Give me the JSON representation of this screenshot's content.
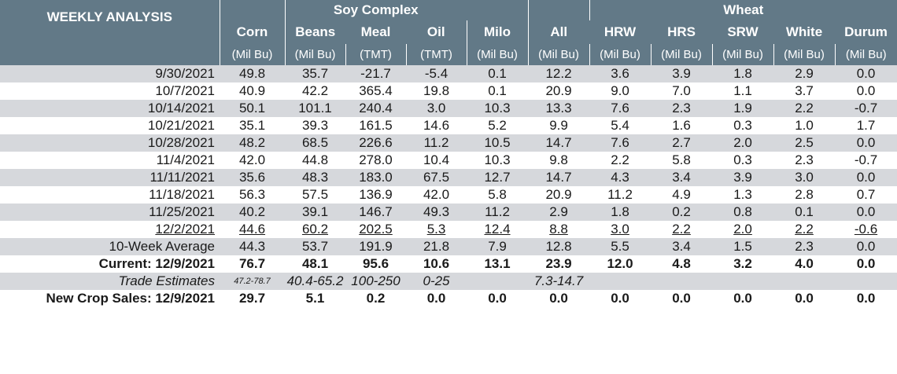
{
  "header": {
    "title": "WEEKLY ANALYSIS",
    "group_soy": "Soy Complex",
    "group_wheat": "Wheat",
    "columns": [
      {
        "name": "Corn",
        "unit": "(Mil Bu)"
      },
      {
        "name": "Beans",
        "unit": "(Mil Bu)"
      },
      {
        "name": "Meal",
        "unit": "(TMT)"
      },
      {
        "name": "Oil",
        "unit": "(TMT)"
      },
      {
        "name": "Milo",
        "unit": "(Mil Bu)"
      },
      {
        "name": "All",
        "unit": "(Mil Bu)"
      },
      {
        "name": "HRW",
        "unit": "(Mil Bu)"
      },
      {
        "name": "HRS",
        "unit": "(Mil Bu)"
      },
      {
        "name": "SRW",
        "unit": "(Mil Bu)"
      },
      {
        "name": "White",
        "unit": "(Mil Bu)"
      },
      {
        "name": "Durum",
        "unit": "(Mil Bu)"
      }
    ]
  },
  "rows": [
    {
      "label": "9/30/2021",
      "values": [
        "49.8",
        "35.7",
        "-21.7",
        "-5.4",
        "0.1",
        "12.2",
        "3.6",
        "3.9",
        "1.8",
        "2.9",
        "0.0"
      ]
    },
    {
      "label": "10/7/2021",
      "values": [
        "40.9",
        "42.2",
        "365.4",
        "19.8",
        "0.1",
        "20.9",
        "9.0",
        "7.0",
        "1.1",
        "3.7",
        "0.0"
      ]
    },
    {
      "label": "10/14/2021",
      "values": [
        "50.1",
        "101.1",
        "240.4",
        "3.0",
        "10.3",
        "13.3",
        "7.6",
        "2.3",
        "1.9",
        "2.2",
        "-0.7"
      ]
    },
    {
      "label": "10/21/2021",
      "values": [
        "35.1",
        "39.3",
        "161.5",
        "14.6",
        "5.2",
        "9.9",
        "5.4",
        "1.6",
        "0.3",
        "1.0",
        "1.7"
      ]
    },
    {
      "label": "10/28/2021",
      "values": [
        "48.2",
        "68.5",
        "226.6",
        "11.2",
        "10.5",
        "14.7",
        "7.6",
        "2.7",
        "2.0",
        "2.5",
        "0.0"
      ]
    },
    {
      "label": "11/4/2021",
      "values": [
        "42.0",
        "44.8",
        "278.0",
        "10.4",
        "10.3",
        "9.8",
        "2.2",
        "5.8",
        "0.3",
        "2.3",
        "-0.7"
      ]
    },
    {
      "label": "11/11/2021",
      "values": [
        "35.6",
        "48.3",
        "183.0",
        "67.5",
        "12.7",
        "14.7",
        "4.3",
        "3.4",
        "3.9",
        "3.0",
        "0.0"
      ]
    },
    {
      "label": "11/18/2021",
      "values": [
        "56.3",
        "57.5",
        "136.9",
        "42.0",
        "5.8",
        "20.9",
        "11.2",
        "4.9",
        "1.3",
        "2.8",
        "0.7"
      ]
    },
    {
      "label": "11/25/2021",
      "values": [
        "40.2",
        "39.1",
        "146.7",
        "49.3",
        "11.2",
        "2.9",
        "1.8",
        "0.2",
        "0.8",
        "0.1",
        "0.0"
      ]
    },
    {
      "label": "12/2/2021",
      "values": [
        "44.6",
        "60.2",
        "202.5",
        "5.3",
        "12.4",
        "8.8",
        "3.0",
        "2.2",
        "2.0",
        "2.2",
        "-0.6"
      ]
    }
  ],
  "average": {
    "label": "10-Week Average",
    "values": [
      "44.3",
      "53.7",
      "191.9",
      "21.8",
      "7.9",
      "12.8",
      "5.5",
      "3.4",
      "1.5",
      "2.3",
      "0.0"
    ]
  },
  "current": {
    "label": "Current: 12/9/2021",
    "values": [
      "76.7",
      "48.1",
      "95.6",
      "10.6",
      "13.1",
      "23.9",
      "12.0",
      "4.8",
      "3.2",
      "4.0",
      "0.0"
    ]
  },
  "estimates": {
    "label": "Trade Estimates",
    "corn": "47.2-78.7",
    "beans": "40.4-65.2",
    "meal": "100-250",
    "oil": "0-25",
    "all_wheat": "7.3-14.7"
  },
  "new_crop": {
    "label": "New Crop Sales: 12/9/2021",
    "values": [
      "29.7",
      "5.1",
      "0.2",
      "0.0",
      "0.0",
      "0.0",
      "0.0",
      "0.0",
      "0.0",
      "0.0",
      "0.0"
    ]
  }
}
